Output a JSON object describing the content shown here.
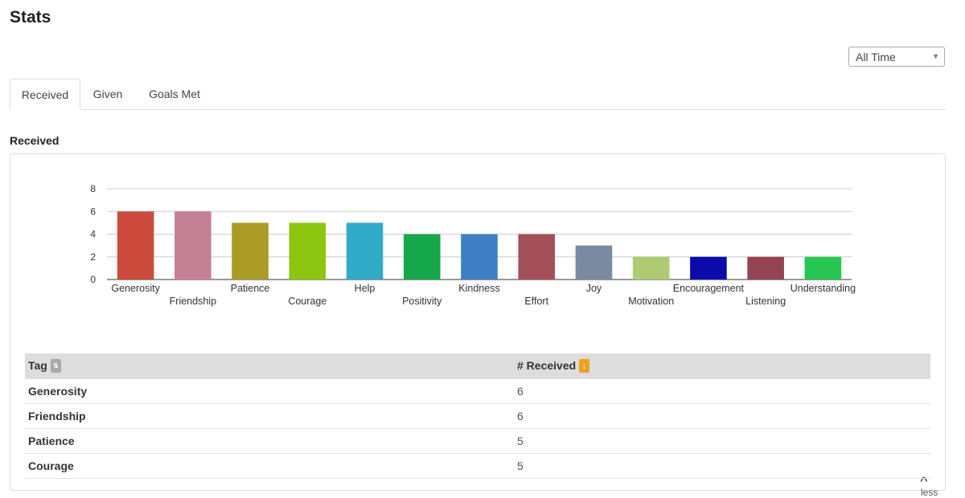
{
  "page": {
    "title": "Stats"
  },
  "filter": {
    "selected": "All Time"
  },
  "tabs": [
    {
      "label": "Received",
      "active": true
    },
    {
      "label": "Given",
      "active": false
    },
    {
      "label": "Goals Met",
      "active": false
    }
  ],
  "section": {
    "title": "Received"
  },
  "chart_data": {
    "type": "bar",
    "categories": [
      "Generosity",
      "Friendship",
      "Patience",
      "Courage",
      "Help",
      "Positivity",
      "Kindness",
      "Effort",
      "Joy",
      "Motivation",
      "Encouragement",
      "Listening",
      "Understanding"
    ],
    "values": [
      6,
      6,
      5,
      5,
      5,
      4,
      4,
      4,
      3,
      2,
      2,
      2,
      2
    ],
    "colors": [
      "#cc4b3c",
      "#c48095",
      "#ab9b27",
      "#8ec50e",
      "#31aac8",
      "#17a74b",
      "#3e7fc4",
      "#a4505b",
      "#7b8aa1",
      "#aecb72",
      "#0b0bac",
      "#964353",
      "#27c653"
    ],
    "yticks": [
      0,
      2,
      4,
      6,
      8
    ],
    "ylim": [
      0,
      8
    ],
    "grid": true,
    "title": "",
    "xlabel": "",
    "ylabel": ""
  },
  "toggle": {
    "label": "less",
    "icon": "chevron-up-icon"
  },
  "table": {
    "headers": {
      "tag": "Tag",
      "received": "# Received"
    },
    "sort_neutral_icon": "sort-icon",
    "sort_desc_icon": "sort-down-icon",
    "accent_color": "#f0a020",
    "rows": [
      {
        "tag": "Generosity",
        "count": "6"
      },
      {
        "tag": "Friendship",
        "count": "6"
      },
      {
        "tag": "Patience",
        "count": "5"
      },
      {
        "tag": "Courage",
        "count": "5"
      }
    ]
  }
}
